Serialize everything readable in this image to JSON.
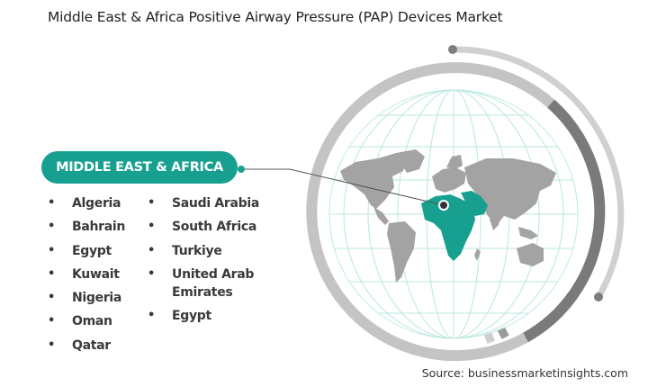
{
  "title": "Middle East & Africa Positive Airway Pressure (PAP) Devices Market",
  "region_label": "MIDDLE EAST & AFRICA",
  "countries_col1": [
    "Algeria",
    "Bahrain",
    "Egypt",
    "Kuwait",
    "Nigeria",
    "Oman",
    "Qatar"
  ],
  "countries_col2": [
    "Saudi Arabia",
    "South Africa",
    "Turkiye",
    "United Arab Emirates",
    "Egypt"
  ],
  "source": "Source: businessmarketinsights.com",
  "colors": {
    "accent": "#17a08f",
    "ring": "#7d7d7d",
    "ring_light": "#cfcfcf",
    "land": "#a3a3a3"
  },
  "icons": {
    "globe": "world-map-globe-icon",
    "pin": "location-pin-icon"
  }
}
